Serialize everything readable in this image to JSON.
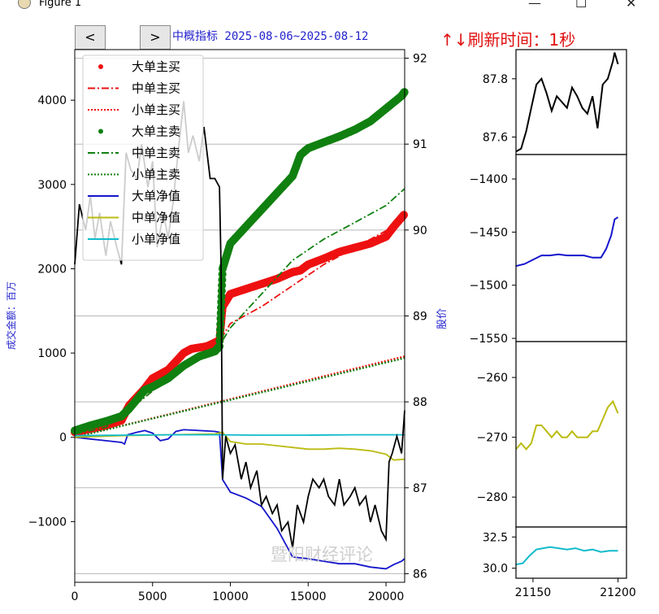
{
  "window": {
    "title": "Figure 1",
    "controls": [
      "—",
      "☐",
      "✕"
    ]
  },
  "toolbar": {
    "prev_label": "<",
    "next_label": ">"
  },
  "header": {
    "subtitle": "中概指标 2025-08-06~2025-08-12",
    "refresh": "↑↓刷新时间：1秒",
    "watermark": "暨阳财经评论"
  },
  "chart_data": [
    {
      "type": "line",
      "title": "中概指标 2025-08-06~2025-08-12",
      "xlim": [
        0,
        21200
      ],
      "x_ticks": [
        0,
        5000,
        10000,
        15000,
        20000
      ],
      "ylabel": "成交金额：百万",
      "ylim": [
        -1720,
        4600
      ],
      "y_ticks": [
        -1000,
        0,
        1000,
        2000,
        3000,
        4000
      ],
      "y2label": "股价",
      "y2lim": [
        85.9,
        92.1
      ],
      "y2_ticks": [
        86,
        87,
        88,
        89,
        90,
        91,
        92
      ],
      "legend": {
        "placement": "upper-left",
        "entries": [
          "大单主买",
          "中单主买",
          "小单主买",
          "大单主卖",
          "中单主卖",
          "小单主卖",
          "大单净值",
          "中单净值",
          "小单净值"
        ]
      },
      "series": [
        {
          "name": "大单主买",
          "color": "#ee1111",
          "style": "dots",
          "x": [
            0,
            1000,
            2000,
            3000,
            3500,
            4500,
            5000,
            6000,
            7000,
            7500,
            8500,
            9300,
            9500,
            10000,
            11000,
            12000,
            13000,
            14000,
            14500,
            15000,
            16000,
            17000,
            18000,
            19000,
            20000,
            20500,
            21200
          ],
          "y": [
            60,
            100,
            140,
            200,
            380,
            580,
            700,
            800,
            1000,
            1050,
            1080,
            1150,
            1550,
            1700,
            1760,
            1820,
            1880,
            1960,
            1980,
            2050,
            2120,
            2200,
            2250,
            2300,
            2380,
            2500,
            2650
          ]
        },
        {
          "name": "中单主买",
          "color": "#ee1111",
          "style": "dashdot",
          "x": [
            0,
            2000,
            4000,
            6000,
            8000,
            9300,
            9500,
            10000,
            12000,
            14000,
            16000,
            18000,
            20000,
            21200
          ],
          "y": [
            40,
            120,
            400,
            700,
            950,
            1060,
            1200,
            1350,
            1550,
            1800,
            2050,
            2250,
            2450,
            2600
          ]
        },
        {
          "name": "小单主买",
          "color": "#ee1111",
          "style": "dotted",
          "x": [
            0,
            21200
          ],
          "y": [
            0,
            960
          ]
        },
        {
          "name": "大单主卖",
          "color": "#108010",
          "style": "dots",
          "x": [
            0,
            1000,
            2000,
            3000,
            3500,
            4500,
            5000,
            6000,
            7000,
            8000,
            9000,
            9300,
            9500,
            10000,
            11000,
            12000,
            13000,
            14000,
            14500,
            15000,
            16000,
            17000,
            18000,
            19000,
            20000,
            21000,
            21200
          ],
          "y": [
            80,
            140,
            190,
            250,
            340,
            560,
            600,
            700,
            850,
            960,
            1020,
            1080,
            2000,
            2300,
            2500,
            2700,
            2900,
            3100,
            3350,
            3430,
            3500,
            3570,
            3650,
            3750,
            3900,
            4050,
            4100
          ]
        },
        {
          "name": "中单主卖",
          "color": "#108010",
          "style": "dashdot",
          "x": [
            0,
            2000,
            4000,
            6000,
            8000,
            9300,
            9500,
            10000,
            12000,
            14000,
            16000,
            18000,
            20000,
            21200
          ],
          "y": [
            40,
            120,
            400,
            700,
            950,
            1060,
            1150,
            1300,
            1700,
            2100,
            2350,
            2550,
            2750,
            2950
          ]
        },
        {
          "name": "小单主卖",
          "color": "#108010",
          "style": "dotted",
          "x": [
            0,
            21200
          ],
          "y": [
            0,
            940
          ]
        },
        {
          "name": "大单净值",
          "color": "#1515cc",
          "style": "solid",
          "x": [
            0,
            1000,
            2000,
            3000,
            3200,
            3400,
            4000,
            4500,
            5000,
            5500,
            6000,
            6500,
            7000,
            8000,
            9000,
            9300,
            9500,
            10000,
            11000,
            12000,
            13000,
            14000,
            15000,
            16000,
            17000,
            18000,
            19000,
            20000,
            20500,
            21000,
            21200
          ],
          "y": [
            0,
            -20,
            -40,
            -60,
            -80,
            30,
            60,
            80,
            50,
            -40,
            -20,
            70,
            90,
            80,
            70,
            60,
            -500,
            -650,
            -720,
            -820,
            -1080,
            -1420,
            -1440,
            -1470,
            -1500,
            -1500,
            -1540,
            -1560,
            -1510,
            -1470,
            -1440
          ]
        },
        {
          "name": "中单净值",
          "color": "#bbbb11",
          "style": "solid",
          "x": [
            0,
            3000,
            6000,
            9000,
            9500,
            10000,
            11000,
            12000,
            13000,
            14000,
            15000,
            16000,
            17000,
            18000,
            19000,
            20000,
            20500,
            21200
          ],
          "y": [
            0,
            20,
            30,
            40,
            60,
            -50,
            -80,
            -80,
            -100,
            -120,
            -140,
            -140,
            -130,
            -140,
            -160,
            -200,
            -270,
            -260
          ]
        },
        {
          "name": "小单净值",
          "color": "#11bbcc",
          "style": "solid",
          "x": [
            0,
            3000,
            6000,
            9000,
            12000,
            15000,
            18000,
            21200
          ],
          "y": [
            20,
            25,
            30,
            30,
            25,
            25,
            30,
            30
          ]
        },
        {
          "name": "股价",
          "color": "#000000",
          "style": "solid",
          "axis": "right",
          "x": [
            0,
            300,
            700,
            1000,
            1300,
            1600,
            2000,
            2300,
            2700,
            3000,
            3300,
            3600,
            4000,
            4300,
            4700,
            5000,
            5300,
            5700,
            6000,
            6300,
            6700,
            7000,
            7300,
            7600,
            8000,
            8300,
            8700,
            9000,
            9300,
            9400,
            9500,
            9700,
            10000,
            10300,
            10700,
            11000,
            11300,
            11700,
            12000,
            12300,
            12700,
            13000,
            13300,
            13700,
            14000,
            14300,
            14700,
            15000,
            15300,
            15700,
            16000,
            16300,
            16700,
            17000,
            17300,
            17700,
            18000,
            18300,
            18700,
            19000,
            19300,
            19700,
            20000,
            20200,
            20400,
            20700,
            21000,
            21200
          ],
          "y": [
            89.6,
            90.3,
            90.0,
            90.4,
            89.9,
            90.2,
            89.7,
            90.1,
            89.8,
            89.6,
            90.9,
            90.7,
            90.6,
            91.0,
            90.5,
            90.8,
            89.8,
            90.2,
            89.9,
            90.3,
            91.0,
            91.5,
            90.9,
            91.1,
            90.8,
            91.2,
            90.6,
            90.6,
            90.5,
            89.6,
            87.1,
            87.6,
            87.4,
            87.5,
            87.1,
            87.3,
            87.0,
            87.2,
            86.8,
            86.9,
            86.7,
            86.8,
            86.5,
            86.6,
            86.3,
            86.8,
            86.6,
            86.9,
            87.1,
            87.0,
            87.1,
            86.9,
            86.8,
            87.1,
            86.8,
            86.9,
            87.0,
            86.8,
            86.9,
            86.6,
            86.8,
            86.5,
            86.4,
            87.3,
            87.4,
            87.6,
            87.4,
            87.9
          ]
        }
      ]
    },
    {
      "type": "line",
      "xlim": [
        21140,
        21205
      ],
      "ylim": [
        87.54,
        87.9
      ],
      "y_ticks": [
        87.6,
        87.8
      ],
      "series": [
        {
          "color": "#000000",
          "x": [
            21140,
            21143,
            21146,
            21149,
            21152,
            21155,
            21158,
            21161,
            21164,
            21167,
            21170,
            21173,
            21176,
            21179,
            21182,
            21185,
            21188,
            21191,
            21194,
            21197,
            21198,
            21200
          ],
          "y": [
            87.55,
            87.56,
            87.62,
            87.7,
            87.78,
            87.8,
            87.75,
            87.69,
            87.74,
            87.72,
            87.7,
            87.77,
            87.74,
            87.7,
            87.68,
            87.74,
            87.63,
            87.78,
            87.8,
            87.86,
            87.89,
            87.85
          ]
        }
      ]
    },
    {
      "type": "line",
      "xlim": [
        21140,
        21205
      ],
      "ylim": [
        -1553,
        -1377
      ],
      "y_ticks": [
        -1550,
        -1500,
        -1450,
        -1400
      ],
      "series": [
        {
          "color": "#1515cc",
          "x": [
            21140,
            21145,
            21150,
            21155,
            21160,
            21165,
            21170,
            21175,
            21180,
            21185,
            21190,
            21193,
            21196,
            21198,
            21200
          ],
          "y": [
            -1482,
            -1480,
            -1476,
            -1472,
            -1472,
            -1471,
            -1472,
            -1472,
            -1472,
            -1474,
            -1474,
            -1466,
            -1453,
            -1438,
            -1436
          ]
        }
      ]
    },
    {
      "type": "line",
      "xlim": [
        21140,
        21205
      ],
      "ylim": [
        -285,
        -254
      ],
      "y_ticks": [
        -280,
        -270,
        -260
      ],
      "series": [
        {
          "color": "#bbbb11",
          "x": [
            21140,
            21143,
            21146,
            21149,
            21152,
            21155,
            21158,
            21161,
            21164,
            21167,
            21170,
            21173,
            21176,
            21179,
            21182,
            21185,
            21188,
            21191,
            21194,
            21197,
            21200
          ],
          "y": [
            -272,
            -271,
            -272,
            -271,
            -268,
            -268,
            -269,
            -270,
            -269,
            -270,
            -270,
            -269,
            -270,
            -270,
            -270,
            -269,
            -269,
            -267,
            -265,
            -264,
            -266
          ]
        }
      ]
    },
    {
      "type": "line",
      "xlim": [
        21140,
        21205
      ],
      "ylim": [
        29.2,
        33.3
      ],
      "y_ticks": [
        30.0,
        32.5
      ],
      "x_ticks": [
        21150,
        21200
      ],
      "series": [
        {
          "color": "#11bbcc",
          "x": [
            21140,
            21144,
            21148,
            21152,
            21156,
            21160,
            21165,
            21170,
            21175,
            21180,
            21185,
            21190,
            21195,
            21200
          ],
          "y": [
            30.3,
            30.4,
            31.0,
            31.5,
            31.6,
            31.7,
            31.6,
            31.5,
            31.6,
            31.4,
            31.5,
            31.3,
            31.4,
            31.4
          ]
        }
      ]
    }
  ]
}
